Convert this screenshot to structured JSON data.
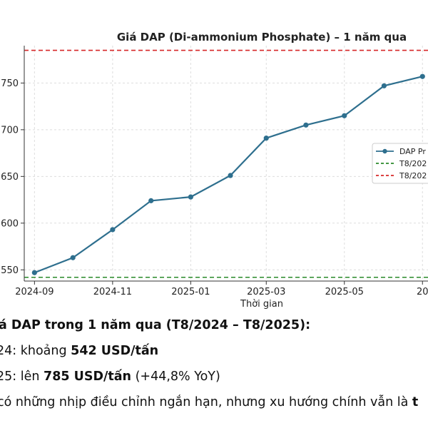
{
  "chart_data": {
    "type": "line",
    "title": "Giá DAP (Di-ammonium Phosphate) – 1 năm qua",
    "xlabel": "Thời gian",
    "ylabel": "",
    "x": [
      "2024-09-01",
      "2024-10-01",
      "2024-11-01",
      "2024-12-01",
      "2025-01-01",
      "2025-02-01",
      "2025-03-01",
      "2025-04-01",
      "2025-05-01",
      "2025-06-01",
      "2025-07-01"
    ],
    "x_tick_labels": [
      "2024-09",
      "2024-11",
      "2025-01",
      "2025-03",
      "2025-05",
      "20"
    ],
    "y_ticks": [
      550,
      600,
      650,
      700,
      750
    ],
    "ylim": [
      538,
      790
    ],
    "series": [
      {
        "name": "DAP Pr",
        "values": [
          547,
          563,
          593,
          624,
          628,
          651,
          691,
          705,
          715,
          747,
          757
        ],
        "color": "#2e6f8e",
        "style": "solid",
        "marker": "circle"
      }
    ],
    "reference_lines": [
      {
        "name": "T8/202",
        "value": 542,
        "color": "#2a8a2a",
        "style": "dashed"
      },
      {
        "name": "T8/202",
        "value": 785,
        "color": "#d62728",
        "style": "dashed"
      }
    ],
    "grid": true,
    "legend_position": "right"
  },
  "text": {
    "line1_a": "iá DAP trong 1 năm qua (T8/2024 – T8/2025):",
    "line2_a": "24: khoảng ",
    "line2_b": "542 USD/tấn",
    "line3_a": "25: lên ",
    "line3_b": "785 USD/tấn",
    "line3_c": " (+44,8% YoY)",
    "line4_a": "có những nhịp điều chỉnh ngắn hạn, nhưng xu hướng chính vẫn là ",
    "line4_b": "t"
  }
}
